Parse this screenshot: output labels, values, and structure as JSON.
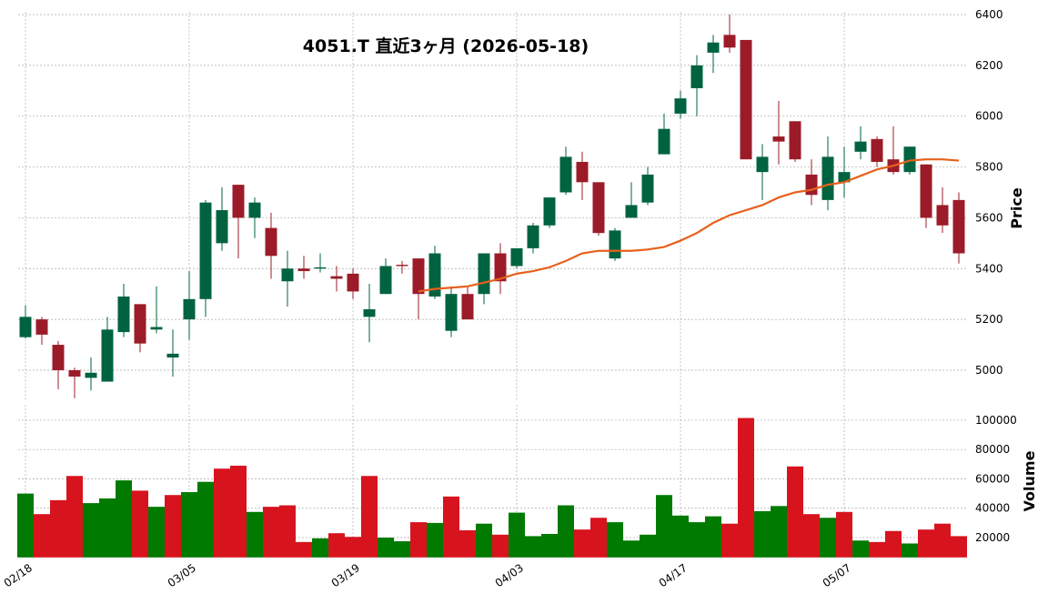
{
  "chart_data": {
    "type": "candlestick",
    "title": "4051.T  直近3ヶ月  (2026-05-18)",
    "categories": [
      "02/18",
      null,
      null,
      null,
      null,
      null,
      null,
      null,
      null,
      null,
      "03/05",
      null,
      null,
      null,
      null,
      null,
      null,
      null,
      null,
      null,
      "03/19",
      null,
      null,
      null,
      null,
      null,
      null,
      null,
      null,
      null,
      "04/03",
      null,
      null,
      null,
      null,
      null,
      null,
      null,
      null,
      null,
      "04/17",
      null,
      null,
      null,
      null,
      null,
      null,
      null,
      null,
      null,
      "05/07",
      null,
      null,
      null,
      null,
      null,
      null,
      null
    ],
    "open": [
      5130,
      5200,
      5100,
      5000,
      4970,
      4955,
      5150,
      5260,
      5160,
      5050,
      5200,
      5280,
      5500,
      5730,
      5600,
      5560,
      5350,
      5400,
      5400,
      5370,
      5380,
      5210,
      5300,
      5415,
      5440,
      5290,
      5155,
      5300,
      5300,
      5460,
      5410,
      5480,
      5570,
      5700,
      5820,
      5740,
      5440,
      5600,
      5660,
      5850,
      6010,
      6110,
      6250,
      6320,
      6300,
      5780,
      5920,
      5980,
      5770,
      5670,
      5740,
      5860,
      5910,
      5830,
      5780,
      5810,
      5650,
      5670
    ],
    "high": [
      5255,
      5210,
      5115,
      5010,
      5050,
      5210,
      5340,
      5260,
      5330,
      5160,
      5390,
      5670,
      5720,
      5730,
      5680,
      5620,
      5470,
      5450,
      5460,
      5410,
      5400,
      5340,
      5440,
      5430,
      5440,
      5490,
      5330,
      5330,
      5460,
      5500,
      5480,
      5580,
      5680,
      5880,
      5860,
      5740,
      5560,
      5740,
      5800,
      6010,
      6100,
      6240,
      6320,
      6400,
      6300,
      5890,
      6060,
      5980,
      5830,
      5920,
      5880,
      5960,
      5920,
      5960,
      5880,
      5810,
      5720,
      5700
    ],
    "low": [
      5125,
      5100,
      4925,
      4890,
      4920,
      4955,
      5130,
      5070,
      5145,
      4975,
      5120,
      5210,
      5470,
      5440,
      5520,
      5360,
      5250,
      5360,
      5385,
      5310,
      5280,
      5110,
      5300,
      5380,
      5200,
      5280,
      5130,
      5200,
      5260,
      5300,
      5400,
      5460,
      5560,
      5690,
      5670,
      5530,
      5430,
      5600,
      5650,
      5850,
      5990,
      6000,
      6170,
      6250,
      5830,
      5670,
      5810,
      5820,
      5650,
      5630,
      5680,
      5830,
      5800,
      5770,
      5770,
      5560,
      5540,
      5420
    ],
    "close": [
      5210,
      5140,
      5000,
      4975,
      4990,
      5160,
      5290,
      5105,
      5170,
      5065,
      5280,
      5660,
      5630,
      5600,
      5660,
      5450,
      5400,
      5390,
      5405,
      5360,
      5310,
      5240,
      5410,
      5410,
      5300,
      5460,
      5300,
      5200,
      5460,
      5350,
      5480,
      5570,
      5680,
      5840,
      5740,
      5540,
      5550,
      5650,
      5770,
      5950,
      6070,
      6200,
      6290,
      6270,
      5830,
      5840,
      5900,
      5830,
      5690,
      5840,
      5780,
      5900,
      5820,
      5780,
      5880,
      5600,
      5570,
      5460
    ],
    "up_color": "#006340",
    "down_color": "#9b1c28",
    "ylabel": "Price",
    "ylim": [
      4880,
      6410
    ],
    "yticks": [
      5000,
      5200,
      5400,
      5600,
      5800,
      6000,
      6200,
      6400
    ],
    "grid": true,
    "ma": {
      "color": "#e8601c",
      "values": [
        null,
        null,
        null,
        null,
        null,
        null,
        null,
        null,
        null,
        null,
        null,
        null,
        null,
        null,
        null,
        null,
        null,
        null,
        null,
        null,
        null,
        null,
        null,
        null,
        5310,
        5320,
        5325,
        5330,
        5345,
        5360,
        5380,
        5390,
        5405,
        5430,
        5460,
        5470,
        5470,
        5470,
        5475,
        5485,
        5510,
        5540,
        5580,
        5610,
        5630,
        5650,
        5680,
        5700,
        5710,
        5730,
        5740,
        5765,
        5790,
        5805,
        5825,
        5830,
        5830,
        5825
      ]
    },
    "volume": {
      "ylabel": "Volume",
      "up_color": "#007a00",
      "down_color": "#d7141e",
      "ylim": [
        6500,
        110500
      ],
      "yticks": [
        20000,
        40000,
        60000,
        80000,
        100000
      ],
      "values": [
        50000,
        36000,
        45500,
        62000,
        43500,
        46700,
        59000,
        52000,
        41000,
        49000,
        51000,
        58000,
        67000,
        69000,
        37500,
        41000,
        42000,
        17000,
        19500,
        23000,
        20500,
        62000,
        20000,
        17500,
        30500,
        30000,
        48000,
        25000,
        29500,
        22000,
        37000,
        21000,
        22500,
        42000,
        25500,
        33500,
        30500,
        18000,
        22000,
        49000,
        35000,
        30500,
        34500,
        29500,
        101500,
        38000,
        41500,
        68500,
        36000,
        33500,
        37500,
        18000,
        17000,
        24500,
        16000,
        25500,
        29500,
        21000
      ]
    }
  }
}
